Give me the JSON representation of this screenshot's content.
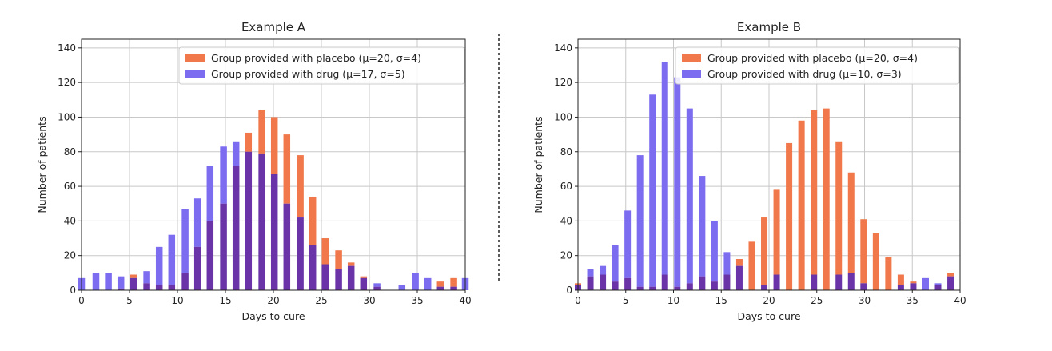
{
  "colors": {
    "placebo": "#f0784a",
    "drug": "#7b6cf0",
    "overlap": "#6a34a8",
    "grid": "#c8c8c8",
    "axis": "#222222",
    "separator": "#333333"
  },
  "chart_data": [
    {
      "type": "bar",
      "title": "Example A",
      "xlabel": "Days to cure",
      "ylabel": "Number of patients",
      "xlim": [
        0,
        40
      ],
      "ylim": [
        0,
        145
      ],
      "xticks": [
        0,
        5,
        10,
        15,
        20,
        25,
        30,
        35,
        40
      ],
      "yticks": [
        0,
        20,
        40,
        60,
        80,
        100,
        120,
        140
      ],
      "grid": true,
      "legend_position": "top-right",
      "x": [
        0,
        1.5,
        2.8,
        4.1,
        5.4,
        6.8,
        8.1,
        9.4,
        10.8,
        12.1,
        13.4,
        14.8,
        16.1,
        17.4,
        18.8,
        20.1,
        21.4,
        22.8,
        24.1,
        25.4,
        26.8,
        28.1,
        29.4,
        30.8,
        32.1,
        33.4,
        34.8,
        36.1,
        37.4,
        38.8,
        40
      ],
      "series": [
        {
          "name": "Group provided with placebo (μ=20, σ=4)",
          "values": [
            0,
            0,
            0,
            1,
            9,
            4,
            3,
            3,
            10,
            25,
            40,
            50,
            72,
            91,
            104,
            100,
            90,
            78,
            54,
            30,
            23,
            16,
            8,
            2,
            0,
            0,
            0,
            0,
            5,
            7,
            0
          ]
        },
        {
          "name": "Group provided with drug (μ=17, σ=5)",
          "values": [
            7,
            10,
            10,
            8,
            7,
            11,
            25,
            32,
            47,
            53,
            72,
            83,
            86,
            80,
            79,
            67,
            50,
            42,
            26,
            15,
            12,
            14,
            7,
            4,
            0,
            3,
            10,
            7,
            2,
            2,
            7
          ]
        }
      ]
    },
    {
      "type": "bar",
      "title": "Example B",
      "xlabel": "Days to cure",
      "ylabel": "Number of patients",
      "xlim": [
        0,
        40
      ],
      "ylim": [
        0,
        145
      ],
      "xticks": [
        0,
        5,
        10,
        15,
        20,
        25,
        30,
        35,
        40
      ],
      "yticks": [
        0,
        20,
        40,
        60,
        80,
        100,
        120,
        140
      ],
      "grid": true,
      "legend_position": "top-right",
      "x": [
        0,
        1.3,
        2.6,
        3.9,
        5.2,
        6.5,
        7.8,
        9.1,
        10.4,
        11.7,
        13,
        14.3,
        15.6,
        16.9,
        18.2,
        19.5,
        20.8,
        22.1,
        23.4,
        24.7,
        26,
        27.3,
        28.6,
        29.9,
        31.2,
        32.5,
        33.8,
        35.1,
        36.4,
        37.7,
        39,
        40
      ],
      "series": [
        {
          "name": "Group provided with placebo (μ=20, σ=4)",
          "values": [
            4,
            8,
            9,
            5,
            7,
            2,
            2,
            9,
            2,
            4,
            8,
            5,
            9,
            18,
            28,
            42,
            58,
            85,
            98,
            104,
            105,
            86,
            68,
            41,
            33,
            19,
            9,
            5,
            0,
            3,
            10,
            0
          ]
        },
        {
          "name": "Group provided with drug (μ=10, σ=3)",
          "values": [
            3,
            12,
            14,
            26,
            46,
            78,
            113,
            132,
            123,
            105,
            66,
            40,
            22,
            14,
            0,
            3,
            9,
            0,
            0,
            9,
            0,
            9,
            10,
            4,
            0,
            0,
            3,
            4,
            7,
            4,
            8,
            0
          ]
        }
      ]
    }
  ]
}
